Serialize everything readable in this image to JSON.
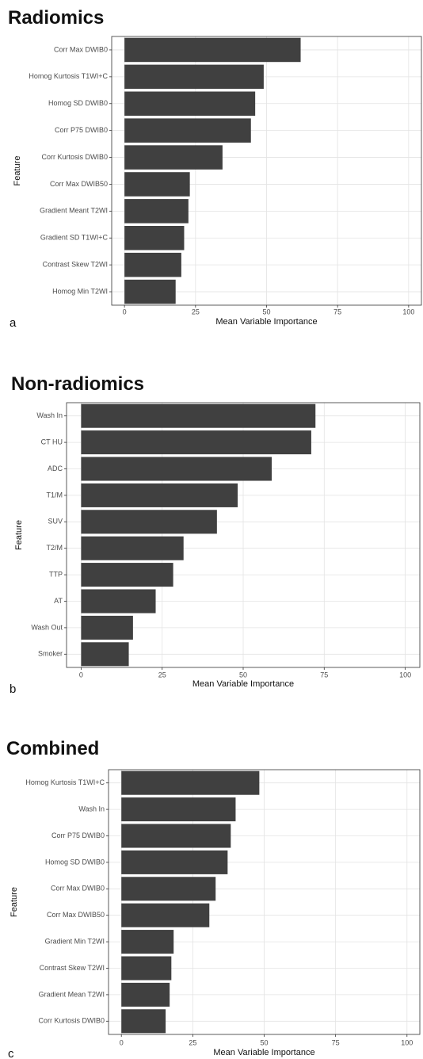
{
  "chart_data": [
    {
      "type": "barh",
      "title": "Radiomics",
      "panel_label": "a",
      "xlabel": "Mean Variable Importance",
      "ylabel": "Feature",
      "categories": [
        "Corr Max DWIB0",
        "Homog Kurtosis T1WI+C",
        "Homog SD DWIB0",
        "Corr P75 DWIB0",
        "Corr Kurtosis DWIB0",
        "Corr Max DWIB50",
        "Gradient Meant T2WI",
        "Gradient SD T1WI+C",
        "Contrast Skew T2WI",
        "Homog Min T2WI"
      ],
      "values": [
        62,
        49,
        46,
        44.5,
        34.5,
        23,
        22.5,
        21,
        20,
        18
      ],
      "color": "#404040",
      "xlim": [
        -4.5,
        104.5
      ],
      "xticks": [
        0,
        25,
        50,
        75,
        100
      ],
      "grid": true
    },
    {
      "type": "barh",
      "title": "Non-radiomics",
      "panel_label": "b",
      "xlabel": "Mean Variable Importance",
      "ylabel": "Feature",
      "categories": [
        "Wash In",
        "CT HU",
        "ADC",
        "T1/M",
        "SUV",
        "T2/M",
        "TTP",
        "AT",
        "Wash Out",
        "Smoker"
      ],
      "values": [
        72.3,
        71,
        58.8,
        48.3,
        41.9,
        31.6,
        28.4,
        23,
        16,
        14.7
      ],
      "color": "#404040",
      "xlim": [
        -4.5,
        104.5
      ],
      "xticks": [
        0,
        25,
        50,
        75,
        100
      ],
      "grid": true
    },
    {
      "type": "barh",
      "title": "Combined",
      "panel_label": "c",
      "xlabel": "Mean Variable Importance",
      "ylabel": "Feature",
      "categories": [
        "Homog Kurtosis T1WI+C",
        "Wash In",
        "Corr P75 DWIB0",
        "Homog SD DWIB0",
        "Corr Max DWIB0",
        "Corr Max DWIB50",
        "Gradient Min T2WI",
        "Contrast Skew T2WI",
        "Gradient Mean T2WI",
        "Corr Kurtosis DWIB0"
      ],
      "values": [
        48.3,
        40,
        38.3,
        37.2,
        33,
        30.8,
        18.3,
        17.5,
        16.9,
        15.5
      ],
      "color": "#404040",
      "xlim": [
        -4.5,
        104.5
      ],
      "xticks": [
        0,
        25,
        50,
        75,
        100
      ],
      "grid": true
    }
  ]
}
